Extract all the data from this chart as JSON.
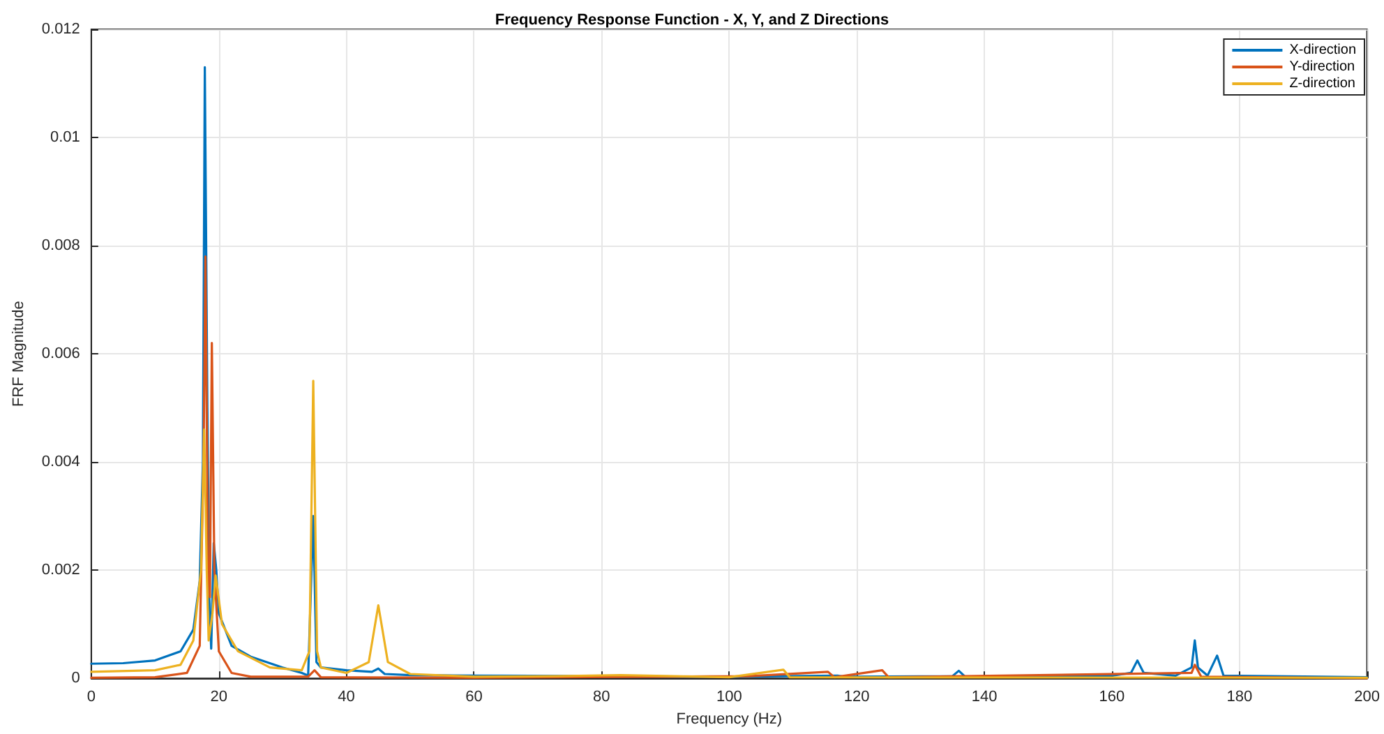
{
  "chart_data": {
    "type": "line",
    "title": "Frequency Response Function - X, Y, and Z Directions",
    "xlabel": "Frequency (Hz)",
    "ylabel": "FRF Magnitude",
    "xlim": [
      0,
      200
    ],
    "xticks": [
      0,
      20,
      40,
      60,
      80,
      100,
      120,
      140,
      160,
      180,
      200
    ],
    "ylim": [
      0,
      0.012
    ],
    "yticks": [
      0,
      0.002,
      0.004,
      0.006,
      0.008,
      0.01,
      0.012
    ],
    "grid": true,
    "legend": "top right",
    "marker": "none",
    "line_style": "solid",
    "series": [
      {
        "name": "X-direction",
        "color": "#0072bd",
        "x": [
          0,
          5,
          10,
          14,
          16,
          17,
          17.5,
          17.8,
          18.2,
          18.5,
          18.8,
          19.2,
          19.6,
          20,
          22,
          25,
          30,
          33,
          34,
          34.8,
          35.3,
          36,
          40,
          44,
          45,
          46,
          50,
          60,
          100,
          117,
          118,
          135,
          136,
          137,
          160,
          163,
          164,
          165,
          170,
          172.5,
          173,
          173.5,
          175,
          176.5,
          177.5,
          200
        ],
        "values": [
          0.00027,
          0.00028,
          0.00033,
          0.0005,
          0.0009,
          0.0018,
          0.004,
          0.0113,
          0.005,
          0.0015,
          0.00055,
          0.0025,
          0.002,
          0.0012,
          0.0006,
          0.0004,
          0.0002,
          0.0001,
          5e-05,
          0.003,
          0.0003,
          0.0002,
          0.00015,
          0.00012,
          0.00018,
          8e-05,
          6e-05,
          5e-05,
          3e-05,
          5e-05,
          3e-05,
          4e-05,
          0.00014,
          3e-05,
          5e-05,
          0.0001,
          0.00033,
          0.0001,
          5e-05,
          0.0002,
          0.0007,
          0.0002,
          5e-05,
          0.00042,
          5e-05,
          2e-05
        ]
      },
      {
        "name": "Y-direction",
        "color": "#d95319",
        "x": [
          0,
          10,
          15,
          17,
          17.6,
          17.9,
          18.3,
          18.6,
          18.9,
          19.3,
          20,
          22,
          25,
          34,
          35,
          36,
          60,
          103,
          115.5,
          116.5,
          124,
          125,
          172.5,
          173,
          174,
          200
        ],
        "values": [
          1e-05,
          2e-05,
          0.0001,
          0.0006,
          0.004,
          0.0078,
          0.002,
          0.0015,
          0.0062,
          0.002,
          0.0005,
          0.0001,
          3e-05,
          3e-05,
          0.00015,
          2e-05,
          1e-05,
          4e-05,
          0.00012,
          2e-05,
          0.00015,
          2e-05,
          0.0001,
          0.00025,
          3e-05,
          0
        ]
      },
      {
        "name": "Z-direction",
        "color": "#edb120",
        "x": [
          0,
          10,
          14,
          16,
          17.2,
          17.7,
          18.1,
          18.4,
          19,
          19.5,
          20.5,
          23,
          28,
          33,
          34.2,
          34.8,
          35.4,
          36,
          40,
          43.5,
          45,
          46.5,
          50,
          60,
          73,
          83,
          100,
          108.5,
          109.5,
          200
        ],
        "values": [
          0.00012,
          0.00015,
          0.00025,
          0.0007,
          0.002,
          0.0046,
          0.002,
          0.0007,
          0.0012,
          0.0019,
          0.001,
          0.0005,
          0.0002,
          0.00015,
          0.0005,
          0.0055,
          0.0005,
          0.0002,
          0.0001,
          0.0003,
          0.00135,
          0.0003,
          8e-05,
          3e-05,
          4e-05,
          6e-05,
          2e-05,
          0.00016,
          2e-05,
          1e-05
        ]
      }
    ]
  }
}
